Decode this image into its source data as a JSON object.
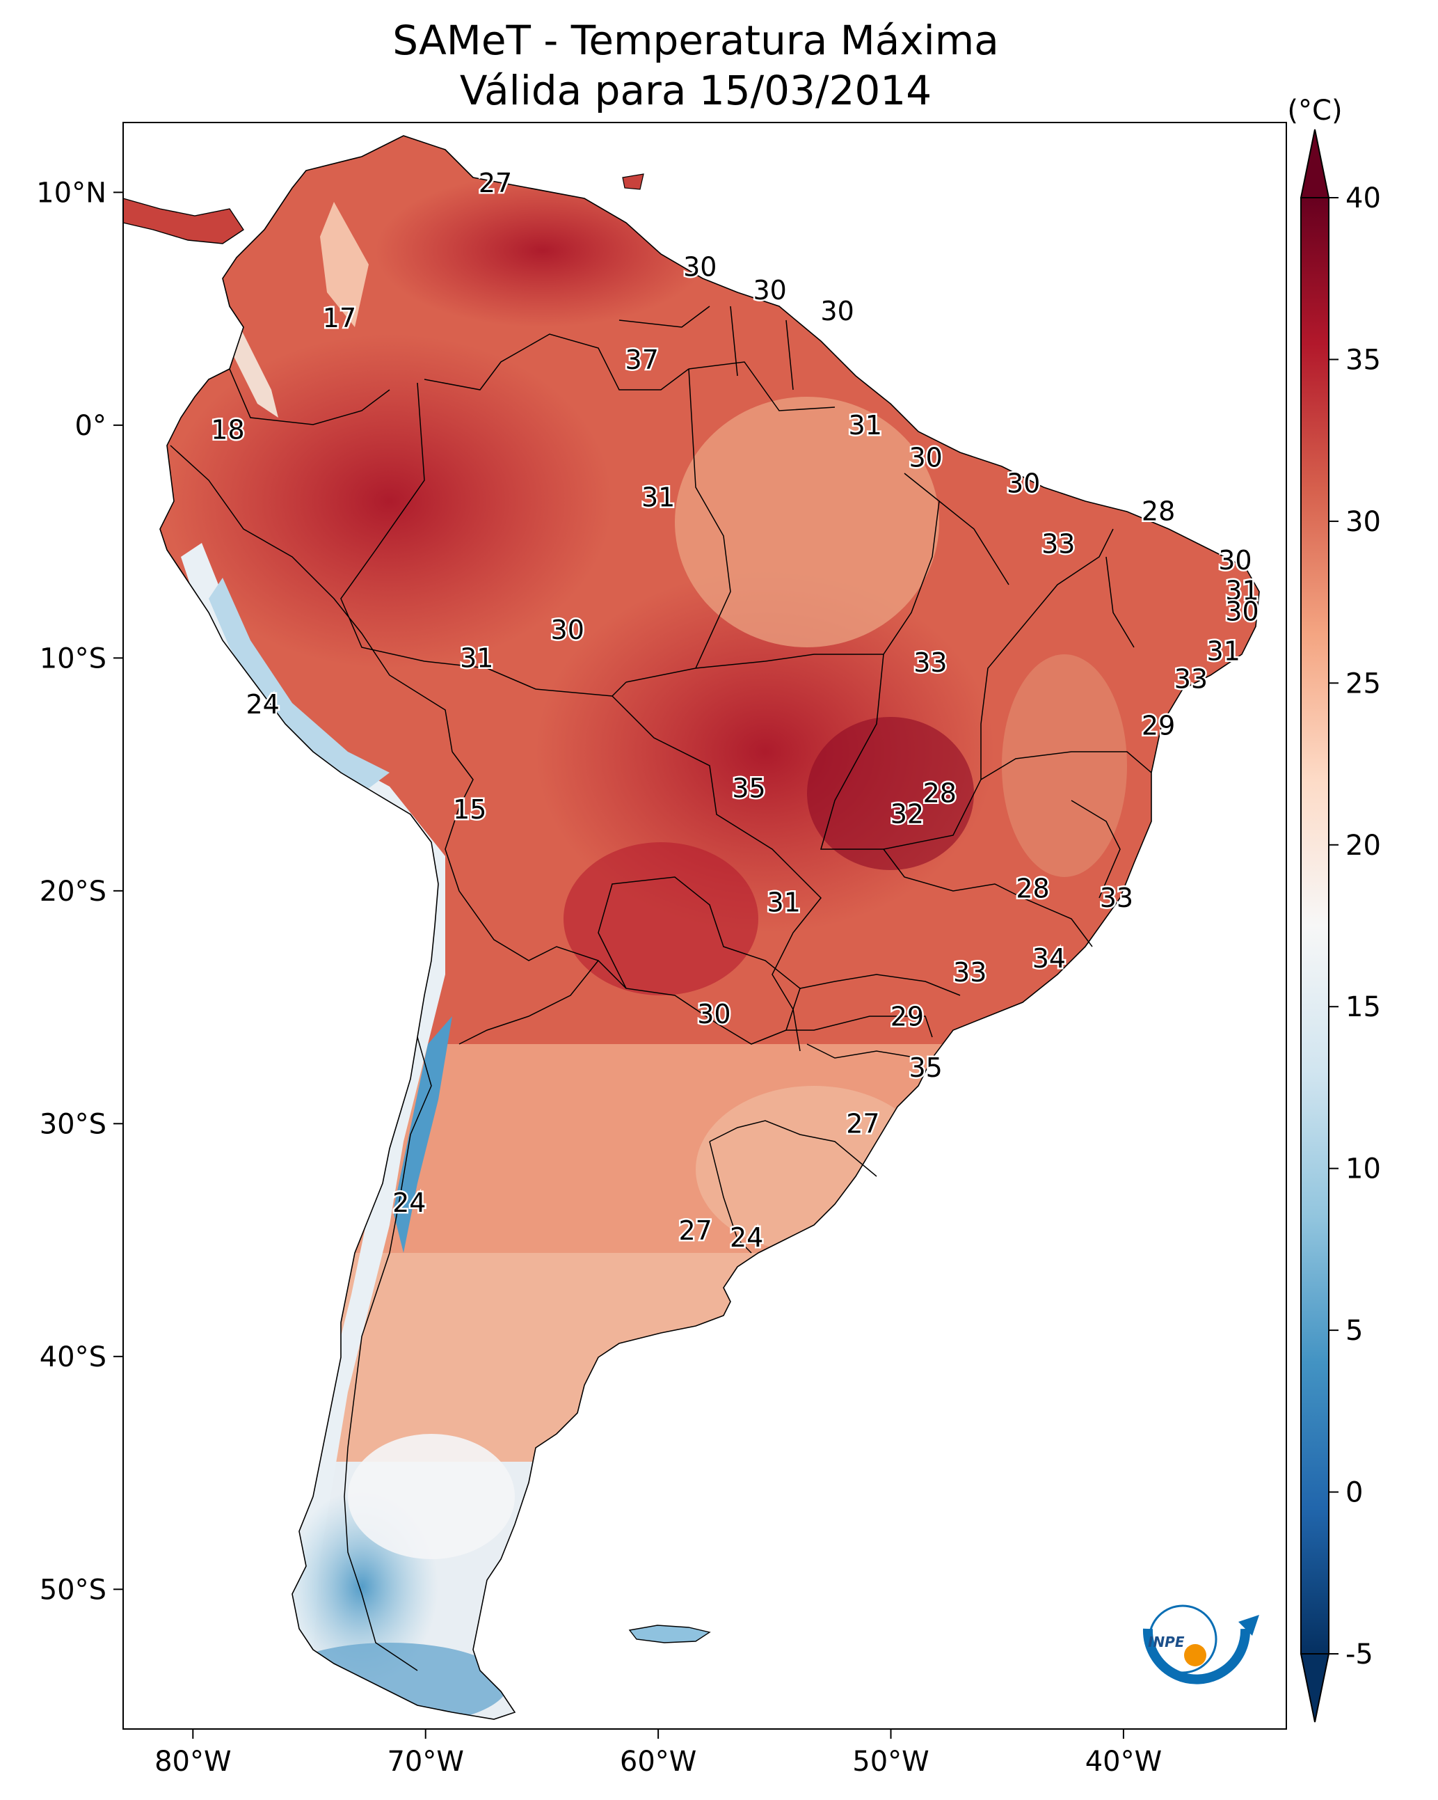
{
  "title": {
    "line1": "SAMeT - Temperatura Máxima",
    "line2": "Válida para 15/03/2014"
  },
  "axes": {
    "lon_ticks": [
      {
        "value": -80,
        "label": "80°W"
      },
      {
        "value": -70,
        "label": "70°W"
      },
      {
        "value": -60,
        "label": "60°W"
      },
      {
        "value": -50,
        "label": "50°W"
      },
      {
        "value": -40,
        "label": "40°W"
      }
    ],
    "lat_ticks": [
      {
        "value": 10,
        "label": "10°N"
      },
      {
        "value": 0,
        "label": "0°"
      },
      {
        "value": -10,
        "label": "10°S"
      },
      {
        "value": -20,
        "label": "20°S"
      },
      {
        "value": -30,
        "label": "30°S"
      },
      {
        "value": -40,
        "label": "40°S"
      },
      {
        "value": -50,
        "label": "50°S"
      }
    ],
    "lon_range": [
      -83,
      -33
    ],
    "lat_range": [
      -56,
      13
    ]
  },
  "colorbar": {
    "unit": "(°C)",
    "min": -5,
    "max": 40,
    "ticks": [
      {
        "value": 40,
        "label": "40"
      },
      {
        "value": 35,
        "label": "35"
      },
      {
        "value": 30,
        "label": "30"
      },
      {
        "value": 25,
        "label": "25"
      },
      {
        "value": 20,
        "label": "20"
      },
      {
        "value": 15,
        "label": "15"
      },
      {
        "value": 10,
        "label": "10"
      },
      {
        "value": 5,
        "label": "5"
      },
      {
        "value": 0,
        "label": "0"
      },
      {
        "value": -5,
        "label": "-5"
      }
    ],
    "colormap": [
      "#053061",
      "#2166ac",
      "#4393c3",
      "#92c5de",
      "#d1e5f0",
      "#f7f7f7",
      "#fddbc7",
      "#f4a582",
      "#d6604d",
      "#b2182b",
      "#67001f"
    ],
    "extend": "both"
  },
  "logo": {
    "text": "INPE",
    "accent_color": "#f39200",
    "brand_color": "#0a6eb4"
  },
  "chart_data": {
    "type": "heatmap",
    "title": "SAMeT - Temperatura Máxima Válida para 15/03/2014",
    "region": "South America",
    "xlabel": "",
    "ylabel": "",
    "xlim": [
      -83,
      -33
    ],
    "ylim": [
      -56,
      13
    ],
    "value_range": [
      -5,
      40
    ],
    "unit": "°C",
    "grid": false,
    "city_values": [
      {
        "lon": -67.0,
        "lat": 10.4,
        "value": 27
      },
      {
        "lon": -73.7,
        "lat": 4.6,
        "value": 17
      },
      {
        "lon": -78.5,
        "lat": -0.2,
        "value": 18
      },
      {
        "lon": -58.2,
        "lat": 6.8,
        "value": 30
      },
      {
        "lon": -55.2,
        "lat": 5.8,
        "value": 30
      },
      {
        "lon": -52.3,
        "lat": 4.9,
        "value": 30
      },
      {
        "lon": -60.7,
        "lat": 2.8,
        "value": 37
      },
      {
        "lon": -51.1,
        "lat": 0.0,
        "value": 31
      },
      {
        "lon": -60.0,
        "lat": -3.1,
        "value": 31
      },
      {
        "lon": -48.5,
        "lat": -1.4,
        "value": 30
      },
      {
        "lon": -44.3,
        "lat": -2.5,
        "value": 30
      },
      {
        "lon": -38.5,
        "lat": -3.7,
        "value": 28
      },
      {
        "lon": -42.8,
        "lat": -5.1,
        "value": 33
      },
      {
        "lon": -35.2,
        "lat": -5.8,
        "value": 30
      },
      {
        "lon": -34.9,
        "lat": -7.1,
        "value": 31
      },
      {
        "lon": -34.9,
        "lat": -8.0,
        "value": 30
      },
      {
        "lon": -35.7,
        "lat": -9.7,
        "value": 31
      },
      {
        "lon": -37.1,
        "lat": -10.9,
        "value": 33
      },
      {
        "lon": -38.5,
        "lat": -12.9,
        "value": 29
      },
      {
        "lon": -48.3,
        "lat": -10.2,
        "value": 33
      },
      {
        "lon": -63.9,
        "lat": -8.8,
        "value": 30
      },
      {
        "lon": -67.8,
        "lat": -10.0,
        "value": 31
      },
      {
        "lon": -77.0,
        "lat": -12.0,
        "value": 24
      },
      {
        "lon": -68.1,
        "lat": -16.5,
        "value": 15
      },
      {
        "lon": -56.1,
        "lat": -15.6,
        "value": 35
      },
      {
        "lon": -47.9,
        "lat": -15.8,
        "value": 28
      },
      {
        "lon": -49.3,
        "lat": -16.7,
        "value": 32
      },
      {
        "lon": -43.9,
        "lat": -19.9,
        "value": 28
      },
      {
        "lon": -40.3,
        "lat": -20.3,
        "value": 33
      },
      {
        "lon": -54.6,
        "lat": -20.5,
        "value": 31
      },
      {
        "lon": -43.2,
        "lat": -22.9,
        "value": 34
      },
      {
        "lon": -46.6,
        "lat": -23.5,
        "value": 33
      },
      {
        "lon": -49.3,
        "lat": -25.4,
        "value": 29
      },
      {
        "lon": -57.6,
        "lat": -25.3,
        "value": 30
      },
      {
        "lon": -48.5,
        "lat": -27.6,
        "value": 35
      },
      {
        "lon": -51.2,
        "lat": -30.0,
        "value": 27
      },
      {
        "lon": -70.7,
        "lat": -33.4,
        "value": 24
      },
      {
        "lon": -58.4,
        "lat": -34.6,
        "value": 27
      },
      {
        "lon": -56.2,
        "lat": -34.9,
        "value": 24
      }
    ]
  }
}
